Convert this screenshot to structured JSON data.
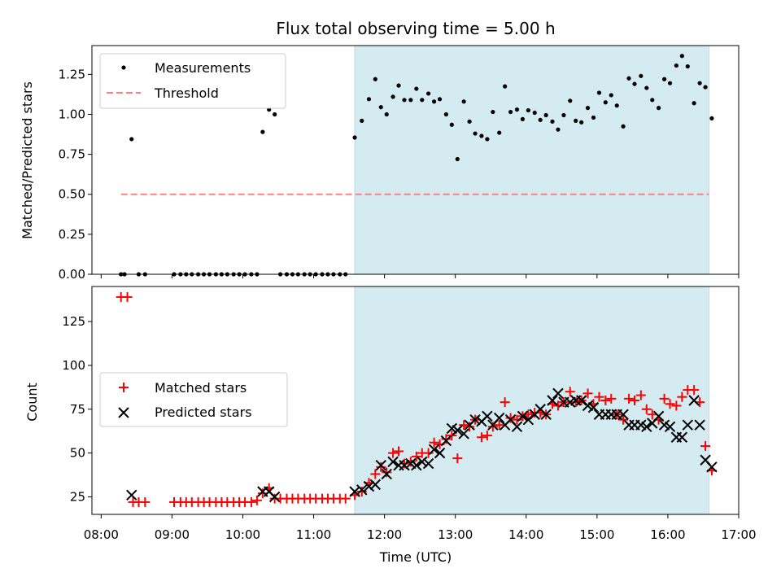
{
  "chart_data": {
    "title": "Flux total observing time = 5.00 h",
    "xlabel": "Time (UTC)",
    "x_ticks": [
      "08:00",
      "09:00",
      "10:00",
      "11:00",
      "12:00",
      "13:00",
      "14:00",
      "15:00",
      "16:00",
      "17:00"
    ],
    "x_range_hours": [
      7.87,
      17.0
    ],
    "shaded_window_hours": [
      11.58,
      16.58
    ],
    "shade_color": "#d4ebf1",
    "panels": [
      {
        "type": "scatter",
        "ylabel": "Matched/Predicted stars",
        "ylim": [
          0.0,
          1.43
        ],
        "yticks": [
          "0.00",
          "0.25",
          "0.50",
          "0.75",
          "1.00",
          "1.25"
        ],
        "threshold": {
          "value": 0.5,
          "x_range_hours": [
            8.28,
            16.58
          ],
          "color": "#ff8080"
        },
        "legend": {
          "position": "upper left",
          "entries": [
            "Measurements",
            "Threshold"
          ]
        },
        "measurements": [
          [
            8.28,
            0
          ],
          [
            8.33,
            0
          ],
          [
            8.43,
            0.845
          ],
          [
            8.53,
            0
          ],
          [
            8.62,
            0
          ],
          [
            9.03,
            0
          ],
          [
            9.12,
            0
          ],
          [
            9.2,
            0
          ],
          [
            9.28,
            0
          ],
          [
            9.37,
            0
          ],
          [
            9.45,
            0
          ],
          [
            9.53,
            0
          ],
          [
            9.62,
            0
          ],
          [
            9.7,
            0
          ],
          [
            9.78,
            0
          ],
          [
            9.87,
            0
          ],
          [
            9.95,
            0
          ],
          [
            10.03,
            0
          ],
          [
            10.12,
            0
          ],
          [
            10.2,
            0
          ],
          [
            10.28,
            0.89
          ],
          [
            10.37,
            1.03
          ],
          [
            10.45,
            1.0
          ],
          [
            10.53,
            0
          ],
          [
            10.62,
            0
          ],
          [
            10.7,
            0
          ],
          [
            10.78,
            0
          ],
          [
            10.87,
            0
          ],
          [
            10.95,
            0
          ],
          [
            11.03,
            0
          ],
          [
            11.12,
            0
          ],
          [
            11.2,
            0
          ],
          [
            11.28,
            0
          ],
          [
            11.37,
            0
          ],
          [
            11.45,
            0
          ],
          [
            11.58,
            0.855
          ],
          [
            11.68,
            0.96
          ],
          [
            11.78,
            1.095
          ],
          [
            11.87,
            1.22
          ],
          [
            11.95,
            1.045
          ],
          [
            12.03,
            1.0
          ],
          [
            12.12,
            1.11
          ],
          [
            12.2,
            1.18
          ],
          [
            12.28,
            1.09
          ],
          [
            12.37,
            1.09
          ],
          [
            12.45,
            1.16
          ],
          [
            12.53,
            1.09
          ],
          [
            12.62,
            1.13
          ],
          [
            12.7,
            1.08
          ],
          [
            12.78,
            1.095
          ],
          [
            12.87,
            1.0
          ],
          [
            12.95,
            0.935
          ],
          [
            13.03,
            0.72
          ],
          [
            13.12,
            1.08
          ],
          [
            13.2,
            0.955
          ],
          [
            13.28,
            0.88
          ],
          [
            13.37,
            0.865
          ],
          [
            13.45,
            0.845
          ],
          [
            13.53,
            1.015
          ],
          [
            13.62,
            0.885
          ],
          [
            13.7,
            1.175
          ],
          [
            13.78,
            1.015
          ],
          [
            13.87,
            1.03
          ],
          [
            13.95,
            0.97
          ],
          [
            14.03,
            1.025
          ],
          [
            14.12,
            1.01
          ],
          [
            14.2,
            0.965
          ],
          [
            14.28,
            0.995
          ],
          [
            14.37,
            0.955
          ],
          [
            14.45,
            0.905
          ],
          [
            14.53,
            0.995
          ],
          [
            14.62,
            1.085
          ],
          [
            14.7,
            0.96
          ],
          [
            14.78,
            0.95
          ],
          [
            14.87,
            1.04
          ],
          [
            14.95,
            0.98
          ],
          [
            15.03,
            1.135
          ],
          [
            15.12,
            1.075
          ],
          [
            15.2,
            1.12
          ],
          [
            15.28,
            1.055
          ],
          [
            15.37,
            0.925
          ],
          [
            15.45,
            1.225
          ],
          [
            15.53,
            1.19
          ],
          [
            15.62,
            1.24
          ],
          [
            15.7,
            1.165
          ],
          [
            15.78,
            1.09
          ],
          [
            15.87,
            1.04
          ],
          [
            15.95,
            1.22
          ],
          [
            16.03,
            1.195
          ],
          [
            16.12,
            1.305
          ],
          [
            16.2,
            1.365
          ],
          [
            16.28,
            1.3
          ],
          [
            16.37,
            1.07
          ],
          [
            16.45,
            1.195
          ],
          [
            16.53,
            1.17
          ],
          [
            16.62,
            0.975
          ]
        ]
      },
      {
        "type": "scatter",
        "ylabel": "Count",
        "ylim": [
          15,
          145
        ],
        "yticks": [
          "25",
          "50",
          "75",
          "100",
          "125"
        ],
        "legend": {
          "position": "center left",
          "entries": [
            "Matched stars",
            "Predicted stars"
          ]
        },
        "series": [
          {
            "name": "Matched stars",
            "marker": "+",
            "color": "#ff0000",
            "points": [
              [
                8.28,
                139
              ],
              [
                8.37,
                139
              ],
              [
                8.45,
                22
              ],
              [
                8.53,
                22
              ],
              [
                8.62,
                22
              ],
              [
                9.03,
                22
              ],
              [
                9.12,
                22
              ],
              [
                9.2,
                22
              ],
              [
                9.28,
                22
              ],
              [
                9.37,
                22
              ],
              [
                9.45,
                22
              ],
              [
                9.53,
                22
              ],
              [
                9.62,
                22
              ],
              [
                9.7,
                22
              ],
              [
                9.78,
                22
              ],
              [
                9.87,
                22
              ],
              [
                9.95,
                22
              ],
              [
                10.03,
                22
              ],
              [
                10.12,
                22
              ],
              [
                10.2,
                23
              ],
              [
                10.28,
                27
              ],
              [
                10.37,
                30
              ],
              [
                10.45,
                24
              ],
              [
                10.53,
                24
              ],
              [
                10.62,
                24
              ],
              [
                10.7,
                24
              ],
              [
                10.78,
                24
              ],
              [
                10.87,
                24
              ],
              [
                10.95,
                24
              ],
              [
                11.03,
                24
              ],
              [
                11.12,
                24
              ],
              [
                11.2,
                24
              ],
              [
                11.28,
                24
              ],
              [
                11.37,
                24
              ],
              [
                11.45,
                24
              ],
              [
                11.58,
                26
              ],
              [
                11.68,
                28
              ],
              [
                11.78,
                33
              ],
              [
                11.87,
                38
              ],
              [
                11.95,
                42
              ],
              [
                12.03,
                39
              ],
              [
                12.12,
                50
              ],
              [
                12.2,
                51
              ],
              [
                12.28,
                44
              ],
              [
                12.37,
                45
              ],
              [
                12.45,
                48
              ],
              [
                12.53,
                50
              ],
              [
                12.62,
                50
              ],
              [
                12.7,
                56
              ],
              [
                12.78,
                55
              ],
              [
                12.87,
                58
              ],
              [
                12.95,
                60
              ],
              [
                13.03,
                47
              ],
              [
                13.12,
                66
              ],
              [
                13.2,
                65
              ],
              [
                13.28,
                69
              ],
              [
                13.37,
                59
              ],
              [
                13.45,
                60
              ],
              [
                13.53,
                65
              ],
              [
                13.62,
                66
              ],
              [
                13.7,
                79
              ],
              [
                13.78,
                70
              ],
              [
                13.87,
                69
              ],
              [
                13.95,
                71
              ],
              [
                14.03,
                72
              ],
              [
                14.12,
                73
              ],
              [
                14.2,
                73
              ],
              [
                14.28,
                72
              ],
              [
                14.37,
                78
              ],
              [
                14.45,
                77
              ],
              [
                14.53,
                79
              ],
              [
                14.62,
                85
              ],
              [
                14.7,
                79
              ],
              [
                14.78,
                80
              ],
              [
                14.87,
                84
              ],
              [
                14.95,
                78
              ],
              [
                15.03,
                82
              ],
              [
                15.12,
                80
              ],
              [
                15.2,
                81
              ],
              [
                15.28,
                72
              ],
              [
                15.37,
                69
              ],
              [
                15.45,
                81
              ],
              [
                15.53,
                80
              ],
              [
                15.62,
                83
              ],
              [
                15.7,
                75
              ],
              [
                15.78,
                72
              ],
              [
                15.87,
                69
              ],
              [
                15.95,
                81
              ],
              [
                16.03,
                78
              ],
              [
                16.12,
                77
              ],
              [
                16.2,
                82
              ],
              [
                16.28,
                86
              ],
              [
                16.37,
                86
              ],
              [
                16.45,
                79
              ],
              [
                16.53,
                54
              ],
              [
                16.62,
                40
              ]
            ]
          },
          {
            "name": "Predicted stars",
            "marker": "x",
            "color": "#000000",
            "points": [
              [
                8.43,
                26
              ],
              [
                10.28,
                28
              ],
              [
                10.37,
                28
              ],
              [
                10.45,
                25
              ],
              [
                11.58,
                28
              ],
              [
                11.68,
                29
              ],
              [
                11.78,
                31
              ],
              [
                11.87,
                32
              ],
              [
                11.95,
                43
              ],
              [
                12.03,
                38
              ],
              [
                12.12,
                45
              ],
              [
                12.2,
                43
              ],
              [
                12.28,
                43
              ],
              [
                12.37,
                44
              ],
              [
                12.45,
                43
              ],
              [
                12.53,
                45
              ],
              [
                12.62,
                44
              ],
              [
                12.7,
                52
              ],
              [
                12.78,
                50
              ],
              [
                12.87,
                57
              ],
              [
                12.95,
                64
              ],
              [
                13.03,
                63
              ],
              [
                13.12,
                61
              ],
              [
                13.2,
                66
              ],
              [
                13.28,
                69
              ],
              [
                13.37,
                68
              ],
              [
                13.45,
                71
              ],
              [
                13.53,
                66
              ],
              [
                13.62,
                70
              ],
              [
                13.7,
                66
              ],
              [
                13.78,
                69
              ],
              [
                13.87,
                65
              ],
              [
                13.95,
                71
              ],
              [
                14.03,
                69
              ],
              [
                14.12,
                72
              ],
              [
                14.2,
                75
              ],
              [
                14.28,
                72
              ],
              [
                14.37,
                80
              ],
              [
                14.45,
                84
              ],
              [
                14.53,
                79
              ],
              [
                14.62,
                79
              ],
              [
                14.7,
                80
              ],
              [
                14.78,
                80
              ],
              [
                14.87,
                77
              ],
              [
                14.95,
                76
              ],
              [
                15.03,
                72
              ],
              [
                15.12,
                72
              ],
              [
                15.2,
                72
              ],
              [
                15.28,
                72
              ],
              [
                15.37,
                72
              ],
              [
                15.45,
                66
              ],
              [
                15.53,
                66
              ],
              [
                15.62,
                66
              ],
              [
                15.7,
                65
              ],
              [
                15.78,
                67
              ],
              [
                15.87,
                71
              ],
              [
                15.95,
                66
              ],
              [
                16.03,
                65
              ],
              [
                16.12,
                59
              ],
              [
                16.2,
                59
              ],
              [
                16.28,
                66
              ],
              [
                16.37,
                80
              ],
              [
                16.45,
                66
              ],
              [
                16.53,
                46
              ],
              [
                16.62,
                42
              ]
            ]
          }
        ]
      }
    ]
  }
}
